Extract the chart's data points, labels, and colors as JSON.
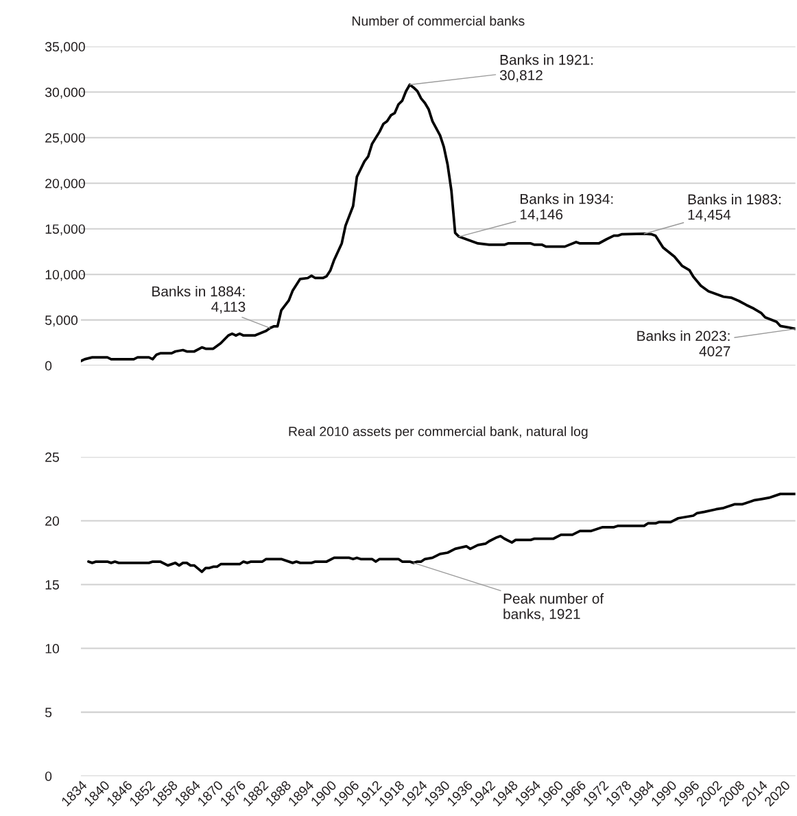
{
  "chart_data": [
    {
      "type": "line",
      "title": "Number of commercial banks",
      "x": [
        1834,
        1835,
        1837,
        1841,
        1842,
        1848,
        1849,
        1852,
        1853,
        1854,
        1855,
        1858,
        1859,
        1861,
        1862,
        1864,
        1866,
        1867,
        1869,
        1871,
        1873,
        1874,
        1875,
        1876,
        1877,
        1880,
        1883,
        1884,
        1885,
        1886,
        1887,
        1889,
        1890,
        1892,
        1894,
        1895,
        1896,
        1898,
        1899,
        1900,
        1901,
        1903,
        1904,
        1906,
        1907,
        1909,
        1910,
        1911,
        1913,
        1914,
        1915,
        1916,
        1917,
        1918,
        1919,
        1920,
        1921,
        1922,
        1923,
        1924,
        1925,
        1926,
        1927,
        1929,
        1930,
        1931,
        1932,
        1933,
        1934,
        1935,
        1938,
        1939,
        1942,
        1946,
        1947,
        1953,
        1954,
        1956,
        1957,
        1962,
        1965,
        1966,
        1971,
        1973,
        1975,
        1976,
        1977,
        1983,
        1985,
        1986,
        1988,
        1991,
        1993,
        1995,
        1996,
        1998,
        2000,
        2004,
        2006,
        2008,
        2010,
        2012,
        2014,
        2015,
        2018,
        2019,
        2021,
        2023
      ],
      "values": [
        500,
        700,
        900,
        900,
        700,
        700,
        900,
        900,
        700,
        1200,
        1350,
        1350,
        1550,
        1700,
        1550,
        1550,
        2000,
        1850,
        1850,
        2450,
        3300,
        3500,
        3300,
        3500,
        3300,
        3300,
        3800,
        4113,
        4300,
        4300,
        6050,
        7150,
        8200,
        9500,
        9600,
        9850,
        9600,
        9600,
        9800,
        10450,
        11600,
        13400,
        15350,
        17500,
        20700,
        22400,
        22950,
        24300,
        25650,
        26500,
        26800,
        27450,
        27700,
        28650,
        29050,
        30100,
        30812,
        30500,
        30100,
        29300,
        28800,
        28100,
        26800,
        25250,
        24000,
        22050,
        19200,
        14550,
        14146,
        14000,
        13550,
        13400,
        13250,
        13250,
        13400,
        13400,
        13250,
        13250,
        13050,
        13050,
        13550,
        13400,
        13400,
        13850,
        14250,
        14250,
        14400,
        14454,
        14400,
        14250,
        12950,
        11950,
        10950,
        10450,
        9750,
        8750,
        8150,
        7550,
        7450,
        7100,
        6650,
        6250,
        5750,
        5300,
        4800,
        4350,
        4200,
        4027
      ],
      "color": "#000000",
      "xlim": [
        1834,
        2023
      ],
      "ylim": [
        0,
        35000
      ],
      "yticks": [
        {
          "value": 0,
          "label": "0"
        },
        {
          "value": 5000,
          "label": "5,000"
        },
        {
          "value": 10000,
          "label": "10,000"
        },
        {
          "value": 15000,
          "label": "15,000"
        },
        {
          "value": 20000,
          "label": "20,000"
        },
        {
          "value": 25000,
          "label": "25,000"
        },
        {
          "value": 30000,
          "label": "30,000"
        },
        {
          "value": 35000,
          "label": "35,000"
        }
      ],
      "xticks": [
        1834,
        1840,
        1846,
        1852,
        1858,
        1864,
        1870,
        1876,
        1882,
        1888,
        1894,
        1900,
        1906,
        1912,
        1918,
        1924,
        1930,
        1936,
        1942,
        1948,
        1954,
        1960,
        1966,
        1972,
        1978,
        1984,
        1990,
        1996,
        2002,
        2008,
        2014,
        2020
      ],
      "tick_labels": "y",
      "grid": "y",
      "legend": false,
      "line_style": "solid",
      "annotations": [
        {
          "text": "Banks in 1884:\n4,113",
          "x": 1884,
          "y": 4113
        },
        {
          "text": "Banks in 1921:\n30,812",
          "x": 1921,
          "y": 30812
        },
        {
          "text": "Banks in 1934:\n14,146",
          "x": 1934,
          "y": 14146
        },
        {
          "text": "Banks in 1983:\n14,454",
          "x": 1983,
          "y": 14454
        },
        {
          "text": "Banks in 2023:\n4027",
          "x": 2023,
          "y": 4027
        }
      ]
    },
    {
      "type": "line",
      "title": "Real 2010 assets per commercial bank, natural log",
      "x": [
        1836,
        1837,
        1838,
        1841,
        1842,
        1843,
        1844,
        1852,
        1853,
        1855,
        1857,
        1859,
        1860,
        1861,
        1862,
        1863,
        1864,
        1866,
        1867,
        1868,
        1869,
        1870,
        1871,
        1876,
        1877,
        1878,
        1879,
        1882,
        1883,
        1887,
        1890,
        1891,
        1892,
        1895,
        1896,
        1899,
        1901,
        1905,
        1906,
        1907,
        1908,
        1911,
        1912,
        1913,
        1918,
        1919,
        1921,
        1922,
        1923,
        1924,
        1925,
        1927,
        1929,
        1931,
        1933,
        1936,
        1937,
        1939,
        1941,
        1942,
        1944,
        1945,
        1946,
        1948,
        1949,
        1953,
        1954,
        1959,
        1961,
        1964,
        1966,
        1969,
        1972,
        1975,
        1976,
        1983,
        1984,
        1986,
        1987,
        1990,
        1992,
        1996,
        1997,
        1999,
        2002,
        2004,
        2007,
        2009,
        2010,
        2012,
        2014,
        2016,
        2019,
        2020,
        2023
      ],
      "values": [
        16.8,
        16.7,
        16.8,
        16.8,
        16.7,
        16.8,
        16.7,
        16.7,
        16.8,
        16.8,
        16.5,
        16.7,
        16.5,
        16.7,
        16.7,
        16.5,
        16.5,
        16.0,
        16.3,
        16.3,
        16.4,
        16.4,
        16.6,
        16.6,
        16.8,
        16.7,
        16.8,
        16.8,
        17.0,
        17.0,
        16.7,
        16.8,
        16.7,
        16.7,
        16.8,
        16.8,
        17.1,
        17.1,
        17.0,
        17.1,
        17.0,
        17.0,
        16.8,
        17.0,
        17.0,
        16.8,
        16.8,
        16.7,
        16.8,
        16.8,
        17.0,
        17.1,
        17.4,
        17.5,
        17.8,
        18.0,
        17.8,
        18.1,
        18.2,
        18.4,
        18.7,
        18.8,
        18.6,
        18.3,
        18.5,
        18.5,
        18.6,
        18.6,
        18.9,
        18.9,
        19.2,
        19.2,
        19.5,
        19.5,
        19.6,
        19.6,
        19.8,
        19.8,
        19.9,
        19.9,
        20.2,
        20.4,
        20.6,
        20.7,
        20.9,
        21.0,
        21.3,
        21.3,
        21.4,
        21.6,
        21.7,
        21.8,
        22.1,
        22.1,
        22.1
      ],
      "color": "#000000",
      "xlim": [
        1834,
        2023
      ],
      "ylim": [
        0,
        25
      ],
      "yticks": [
        0,
        5,
        10,
        15,
        20,
        25
      ],
      "xticks": [
        1834,
        1840,
        1846,
        1852,
        1858,
        1864,
        1870,
        1876,
        1882,
        1888,
        1894,
        1900,
        1906,
        1912,
        1918,
        1924,
        1930,
        1936,
        1942,
        1948,
        1954,
        1960,
        1966,
        1972,
        1978,
        1984,
        1990,
        1996,
        2002,
        2008,
        2014,
        2020
      ],
      "grid": "y",
      "legend": false,
      "line_style": "solid",
      "annotations": [
        {
          "text": "Peak number of\nbanks, 1921",
          "x": 1922,
          "y": 16.7
        }
      ]
    }
  ]
}
